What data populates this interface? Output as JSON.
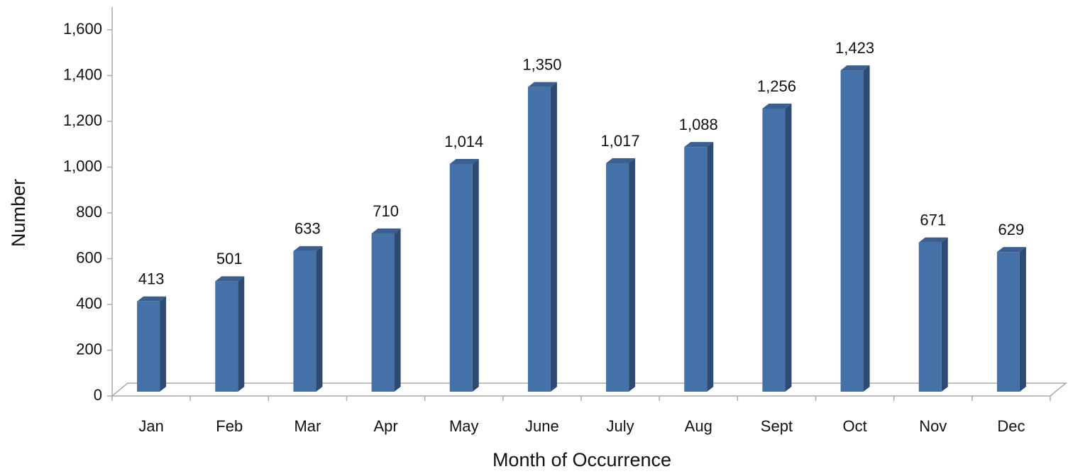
{
  "chart_data": {
    "type": "bar",
    "x_label": "Month of Occurrence",
    "y_label": "Number",
    "categories": [
      "Jan",
      "Feb",
      "Mar",
      "Apr",
      "May",
      "June",
      "July",
      "Aug",
      "Sept",
      "Oct",
      "Nov",
      "Dec"
    ],
    "values": [
      413,
      501,
      633,
      710,
      1014,
      1350,
      1017,
      1088,
      1256,
      1423,
      671,
      629
    ],
    "value_labels": [
      "413",
      "501",
      "633",
      "710",
      "1,014",
      "1,350",
      "1,017",
      "1,088",
      "1,256",
      "1,423",
      "671",
      "629"
    ],
    "color": "#4472a8",
    "ylim": [
      0,
      1600
    ],
    "yticks": [
      0,
      200,
      400,
      600,
      800,
      {
        "value": 1000,
        "label": "1,000"
      },
      {
        "value": 1200,
        "label": "1,200"
      },
      {
        "value": 1400,
        "label": "1,400"
      },
      {
        "value": 1600,
        "label": "1,600"
      }
    ],
    "grid": false
  }
}
